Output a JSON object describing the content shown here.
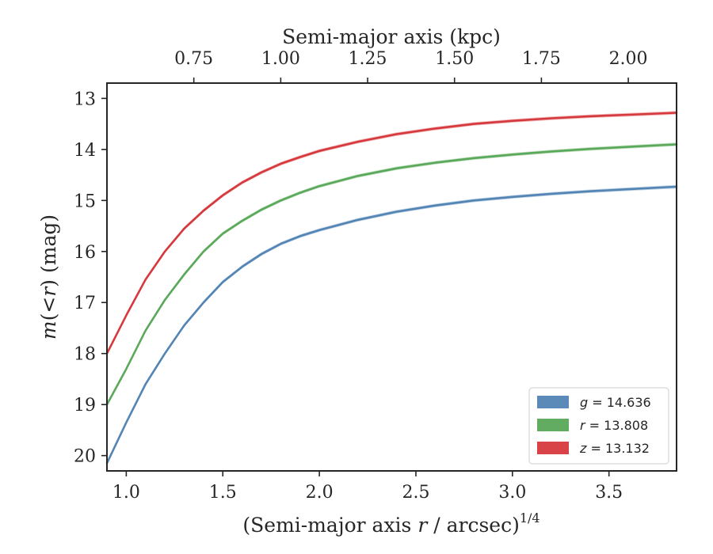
{
  "chart_data": {
    "type": "line",
    "xlabel": "(Semi-major axis r / arcsec)^1/4",
    "ylabel": "m(< r) (mag)",
    "top_xlabel": "Semi-major axis (kpc)",
    "xlim": [
      0.9,
      3.85
    ],
    "ylim": [
      20.3,
      12.7
    ],
    "y_inverted": true,
    "x_ticks": [
      1.0,
      1.5,
      2.0,
      2.5,
      3.0,
      3.5
    ],
    "x_tick_labels": [
      "1.0",
      "1.5",
      "2.0",
      "2.5",
      "3.0",
      "3.5"
    ],
    "y_ticks": [
      13,
      14,
      15,
      16,
      17,
      18,
      19,
      20
    ],
    "y_tick_labels": [
      "13",
      "14",
      "15",
      "16",
      "17",
      "18",
      "19",
      "20"
    ],
    "top_x_ticks_kpc": [
      0.75,
      1.0,
      1.25,
      1.5,
      1.75,
      2.0
    ],
    "top_x_tick_labels": [
      "0.75",
      "1.00",
      "1.25",
      "1.50",
      "1.75",
      "2.00"
    ],
    "top_x_tick_positions": [
      1.35,
      1.8,
      2.25,
      2.7,
      3.15,
      3.6
    ],
    "grid": false,
    "legend_position": "lower right",
    "series": [
      {
        "name": "g = 14.636",
        "band": "g",
        "value": "14.636",
        "color": "#5284b4",
        "x": [
          0.9,
          1.0,
          1.1,
          1.2,
          1.3,
          1.4,
          1.5,
          1.6,
          1.7,
          1.8,
          1.9,
          2.0,
          2.2,
          2.4,
          2.6,
          2.8,
          3.0,
          3.2,
          3.4,
          3.6,
          3.8,
          3.85
        ],
        "y": [
          20.15,
          19.35,
          18.6,
          18.0,
          17.45,
          17.0,
          16.6,
          16.3,
          16.05,
          15.85,
          15.7,
          15.58,
          15.38,
          15.22,
          15.1,
          15.0,
          14.93,
          14.87,
          14.82,
          14.78,
          14.74,
          14.73
        ]
      },
      {
        "name": "r = 13.808",
        "band": "r",
        "value": "13.808",
        "color": "#5aa85a",
        "x": [
          0.9,
          1.0,
          1.1,
          1.2,
          1.3,
          1.4,
          1.5,
          1.6,
          1.7,
          1.8,
          1.9,
          2.0,
          2.2,
          2.4,
          2.6,
          2.8,
          3.0,
          3.2,
          3.4,
          3.6,
          3.8,
          3.85
        ],
        "y": [
          19.0,
          18.3,
          17.55,
          16.95,
          16.45,
          16.0,
          15.65,
          15.4,
          15.18,
          15.0,
          14.85,
          14.72,
          14.52,
          14.37,
          14.26,
          14.17,
          14.1,
          14.04,
          13.99,
          13.95,
          13.91,
          13.9
        ]
      },
      {
        "name": "z = 13.132",
        "band": "z",
        "value": "13.132",
        "color": "#d6393d",
        "x": [
          0.9,
          1.0,
          1.1,
          1.2,
          1.3,
          1.4,
          1.5,
          1.6,
          1.7,
          1.8,
          1.9,
          2.0,
          2.2,
          2.4,
          2.6,
          2.8,
          3.0,
          3.2,
          3.4,
          3.6,
          3.8,
          3.85
        ],
        "y": [
          18.0,
          17.25,
          16.55,
          16.0,
          15.55,
          15.2,
          14.9,
          14.65,
          14.45,
          14.28,
          14.15,
          14.03,
          13.85,
          13.7,
          13.59,
          13.5,
          13.44,
          13.39,
          13.35,
          13.32,
          13.29,
          13.28
        ]
      }
    ]
  }
}
